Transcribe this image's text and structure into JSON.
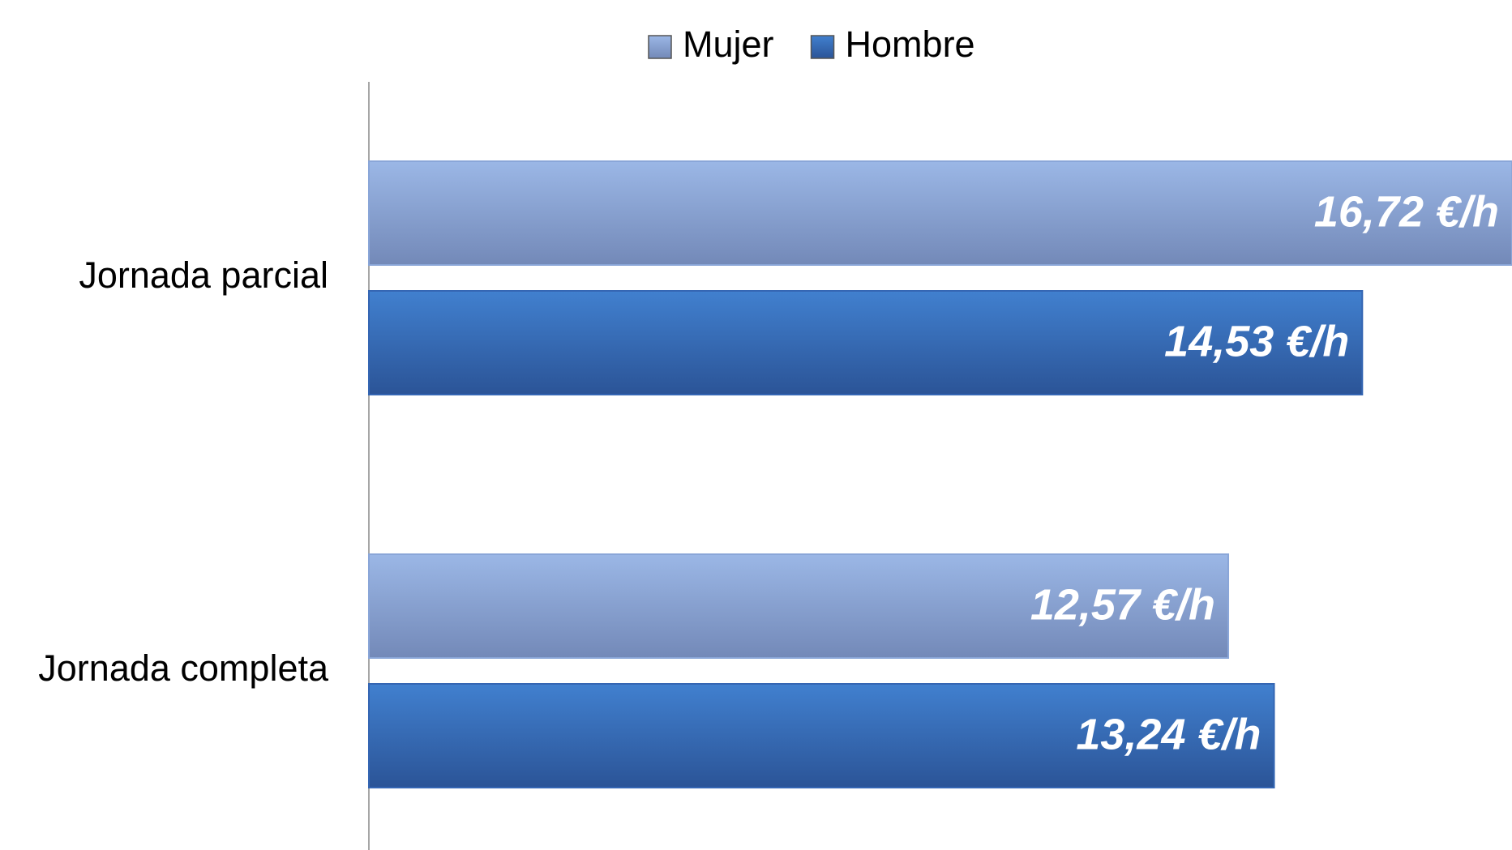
{
  "chart_data": {
    "type": "bar",
    "orientation": "horizontal",
    "categories": [
      "Jornada parcial",
      "Jornada completa"
    ],
    "series": [
      {
        "name": "Mujer",
        "color": "#8aa6d8",
        "values": [
          16.72,
          12.57
        ],
        "value_labels": [
          "16,72 €/h",
          "12,57 €/h"
        ]
      },
      {
        "name": "Hombre",
        "color": "#3566b3",
        "values": [
          14.53,
          13.24
        ],
        "value_labels": [
          "14,53 €/h",
          "13,24 €/h"
        ]
      }
    ],
    "xlim": [
      0,
      16.72
    ],
    "legend": "top"
  }
}
